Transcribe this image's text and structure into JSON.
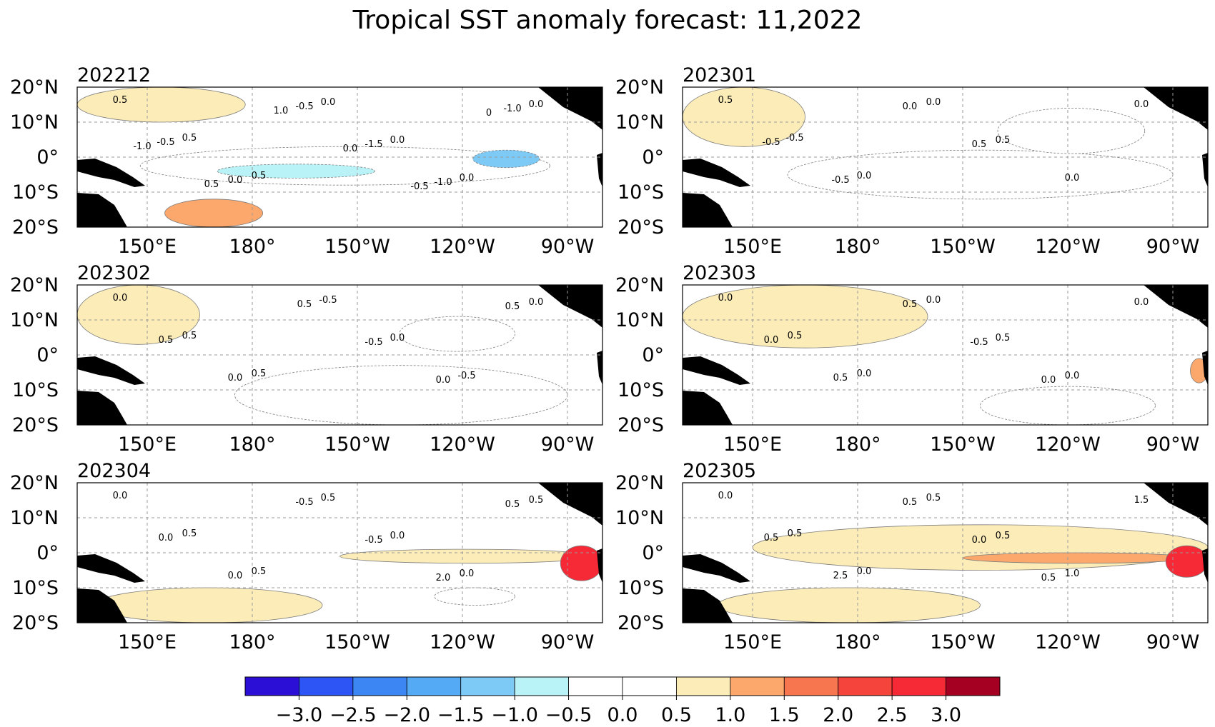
{
  "chart_data": {
    "type": "heatmap",
    "title": "Tropical SST anomaly forecast: 11,2022",
    "xlabel": "",
    "ylabel": "",
    "grid": true,
    "legend": "colorbar bottom",
    "lon_ticks": [
      "150°E",
      "180°",
      "150°W",
      "120°W",
      "90°W"
    ],
    "lat_ticks": [
      "20°N",
      "10°N",
      "0°",
      "10°S",
      "20°S"
    ],
    "colorbar": {
      "levels": [
        -3.5,
        -3.0,
        -2.5,
        -2.0,
        -1.5,
        -1.0,
        -0.5,
        0.0,
        0.5,
        1.0,
        1.5,
        2.0,
        2.5,
        3.0,
        3.5
      ],
      "tick_labels": [
        "−3.0",
        "−2.5",
        "−2.0",
        "−1.5",
        "−1.0",
        "−0.5",
        "0.0",
        "0.5",
        "1.0",
        "1.5",
        "2.0",
        "2.5",
        "3.0"
      ],
      "colors": [
        "#2b0fd6",
        "#2d55f5",
        "#3b86f2",
        "#55aaf6",
        "#7ecaf7",
        "#b9f3f7",
        "#ffffff",
        "#ffffff",
        "#fcecb8",
        "#fca86d",
        "#f8764f",
        "#f5443c",
        "#f52a36",
        "#a50021"
      ]
    },
    "panels": [
      {
        "month": "202212",
        "contour_labels": [
          "0.5",
          "0.5",
          "0.5",
          "0.0",
          "0.0",
          "0.0",
          "0.0",
          "-0.5",
          "0.0",
          "-0.5",
          "-1.5",
          "-1.0",
          "-1.0",
          "-1.0",
          "0.5",
          "1.0",
          "0.0",
          "-0.5",
          "0"
        ],
        "features": [
          {
            "kind": "cold",
            "value": -0.5,
            "lon": [
              148,
              265
            ],
            "lat": [
              -8,
              3
            ]
          },
          {
            "kind": "cold",
            "value": -1.0,
            "lon": [
              170,
              215
            ],
            "lat": [
              -6,
              -2
            ]
          },
          {
            "kind": "cold",
            "value": -1.5,
            "lon": [
              243,
              262
            ],
            "lat": [
              -3,
              2
            ]
          },
          {
            "kind": "warm",
            "value": 0.5,
            "lon": [
              130,
              178
            ],
            "lat": [
              10,
              20
            ]
          },
          {
            "kind": "warm",
            "value": 1.0,
            "lon": [
              155,
              183
            ],
            "lat": [
              -20,
              -12
            ]
          }
        ]
      },
      {
        "month": "202301",
        "contour_labels": [
          "0.5",
          "-0.5",
          "0.0",
          "0.0",
          "0.5",
          "0.0",
          "0.0",
          "-0.5",
          "-0.5",
          "0.0",
          "0.5"
        ],
        "features": [
          {
            "kind": "cold",
            "value": -0.5,
            "lon": [
              160,
              270
            ],
            "lat": [
              -12,
              2
            ]
          },
          {
            "kind": "cold",
            "value": -0.5,
            "lon": [
              220,
              262
            ],
            "lat": [
              1,
              14
            ]
          },
          {
            "kind": "warm",
            "value": 0.5,
            "lon": [
              130,
              165
            ],
            "lat": [
              3,
              20
            ]
          }
        ]
      },
      {
        "month": "202302",
        "contour_labels": [
          "0.0",
          "0.5",
          "0.5",
          "-0.5",
          "0.0",
          "-0.5",
          "0.0",
          "0.5",
          "0.0",
          "0.5",
          "-0.5",
          "0.0",
          "0.5"
        ],
        "features": [
          {
            "kind": "cold",
            "value": -0.5,
            "lon": [
              175,
              270
            ],
            "lat": [
              -20,
              -3
            ]
          },
          {
            "kind": "cold",
            "value": -0.5,
            "lon": [
              222,
              255
            ],
            "lat": [
              1,
              11
            ]
          },
          {
            "kind": "warm",
            "value": 0.5,
            "lon": [
              130,
              165
            ],
            "lat": [
              3,
              20
            ]
          }
        ]
      },
      {
        "month": "202303",
        "contour_labels": [
          "0.0",
          "0.5",
          "0.0",
          "0.0",
          "0.5",
          "0.0",
          "0.0",
          "0.0",
          "0.5",
          "0.5",
          "-0.5",
          "0.0"
        ],
        "features": [
          {
            "kind": "cold",
            "value": -0.5,
            "lon": [
              215,
              265
            ],
            "lat": [
              -20,
              -9
            ]
          },
          {
            "kind": "warm",
            "value": 0.5,
            "lon": [
              130,
              200
            ],
            "lat": [
              2,
              20
            ]
          },
          {
            "kind": "warm",
            "value": 1.0,
            "lon": [
              275,
              280
            ],
            "lat": [
              -8,
              -1
            ]
          }
        ]
      },
      {
        "month": "202304",
        "contour_labels": [
          "0.0",
          "0.5",
          "0.5",
          "0.5",
          "0.0",
          "0.0",
          "0.5",
          "0.0",
          "0.0",
          "-0.5",
          "-0.5",
          "2.0",
          "0.5"
        ],
        "features": [
          {
            "kind": "warm",
            "value": 0.5,
            "lon": [
              205,
              278
            ],
            "lat": [
              -3,
              1
            ]
          },
          {
            "kind": "warm",
            "value": 0.5,
            "lon": [
              135,
              200
            ],
            "lat": [
              -20,
              -10
            ]
          },
          {
            "kind": "warm",
            "value": 2.5,
            "lon": [
              268,
              280
            ],
            "lat": [
              -8,
              2
            ]
          },
          {
            "kind": "cold",
            "value": -0.5,
            "lon": [
              232,
              255
            ],
            "lat": [
              -15,
              -10
            ]
          }
        ]
      },
      {
        "month": "202305",
        "contour_labels": [
          "0.0",
          "0.5",
          "0.0",
          "0.5",
          "0.5",
          "1.0",
          "1.5",
          "0.5",
          "2.5",
          "0.5",
          "0.0",
          "0.5"
        ],
        "features": [
          {
            "kind": "warm",
            "value": 0.5,
            "lon": [
              150,
              280
            ],
            "lat": [
              -5,
              8
            ]
          },
          {
            "kind": "warm",
            "value": 1.0,
            "lon": [
              210,
              275
            ],
            "lat": [
              -3,
              0
            ]
          },
          {
            "kind": "warm",
            "value": 2.5,
            "lon": [
              268,
              280
            ],
            "lat": [
              -7,
              2
            ]
          },
          {
            "kind": "warm",
            "value": 0.5,
            "lon": [
              140,
              215
            ],
            "lat": [
              -20,
              -10
            ]
          }
        ]
      }
    ]
  }
}
